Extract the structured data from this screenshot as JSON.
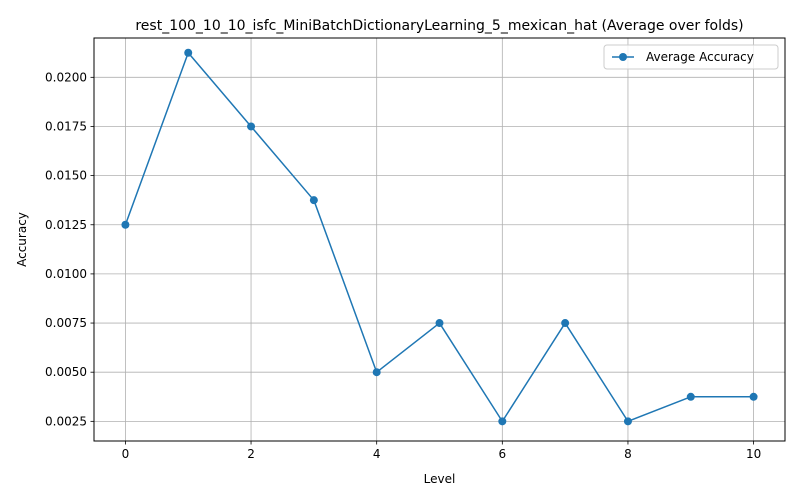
{
  "chart_data": {
    "type": "line",
    "title": "rest_100_10_10_isfc_MiniBatchDictionaryLearning_5_mexican_hat (Average over folds)",
    "xlabel": "Level",
    "ylabel": "Accuracy",
    "x": [
      0,
      1,
      2,
      3,
      4,
      5,
      6,
      7,
      8,
      9,
      10
    ],
    "series": [
      {
        "name": "Average Accuracy",
        "values": [
          0.0125,
          0.02125,
          0.0175,
          0.01375,
          0.005,
          0.0075,
          0.0025,
          0.0075,
          0.0025,
          0.00375,
          0.00375
        ],
        "color": "#1f77b4",
        "marker": "circle"
      }
    ],
    "xlim": [
      -0.5,
      10.5
    ],
    "ylim": [
      0.0015,
      0.022
    ],
    "xticks": [
      0,
      2,
      4,
      6,
      8,
      10
    ],
    "xtick_labels": [
      "0",
      "2",
      "4",
      "6",
      "8",
      "10"
    ],
    "yticks": [
      0.0025,
      0.005,
      0.0075,
      0.01,
      0.0125,
      0.015,
      0.0175,
      0.02
    ],
    "ytick_labels": [
      "0.0025",
      "0.0050",
      "0.0075",
      "0.0100",
      "0.0125",
      "0.0150",
      "0.0175",
      "0.0200"
    ],
    "grid": true,
    "legend_position": "top-right"
  }
}
